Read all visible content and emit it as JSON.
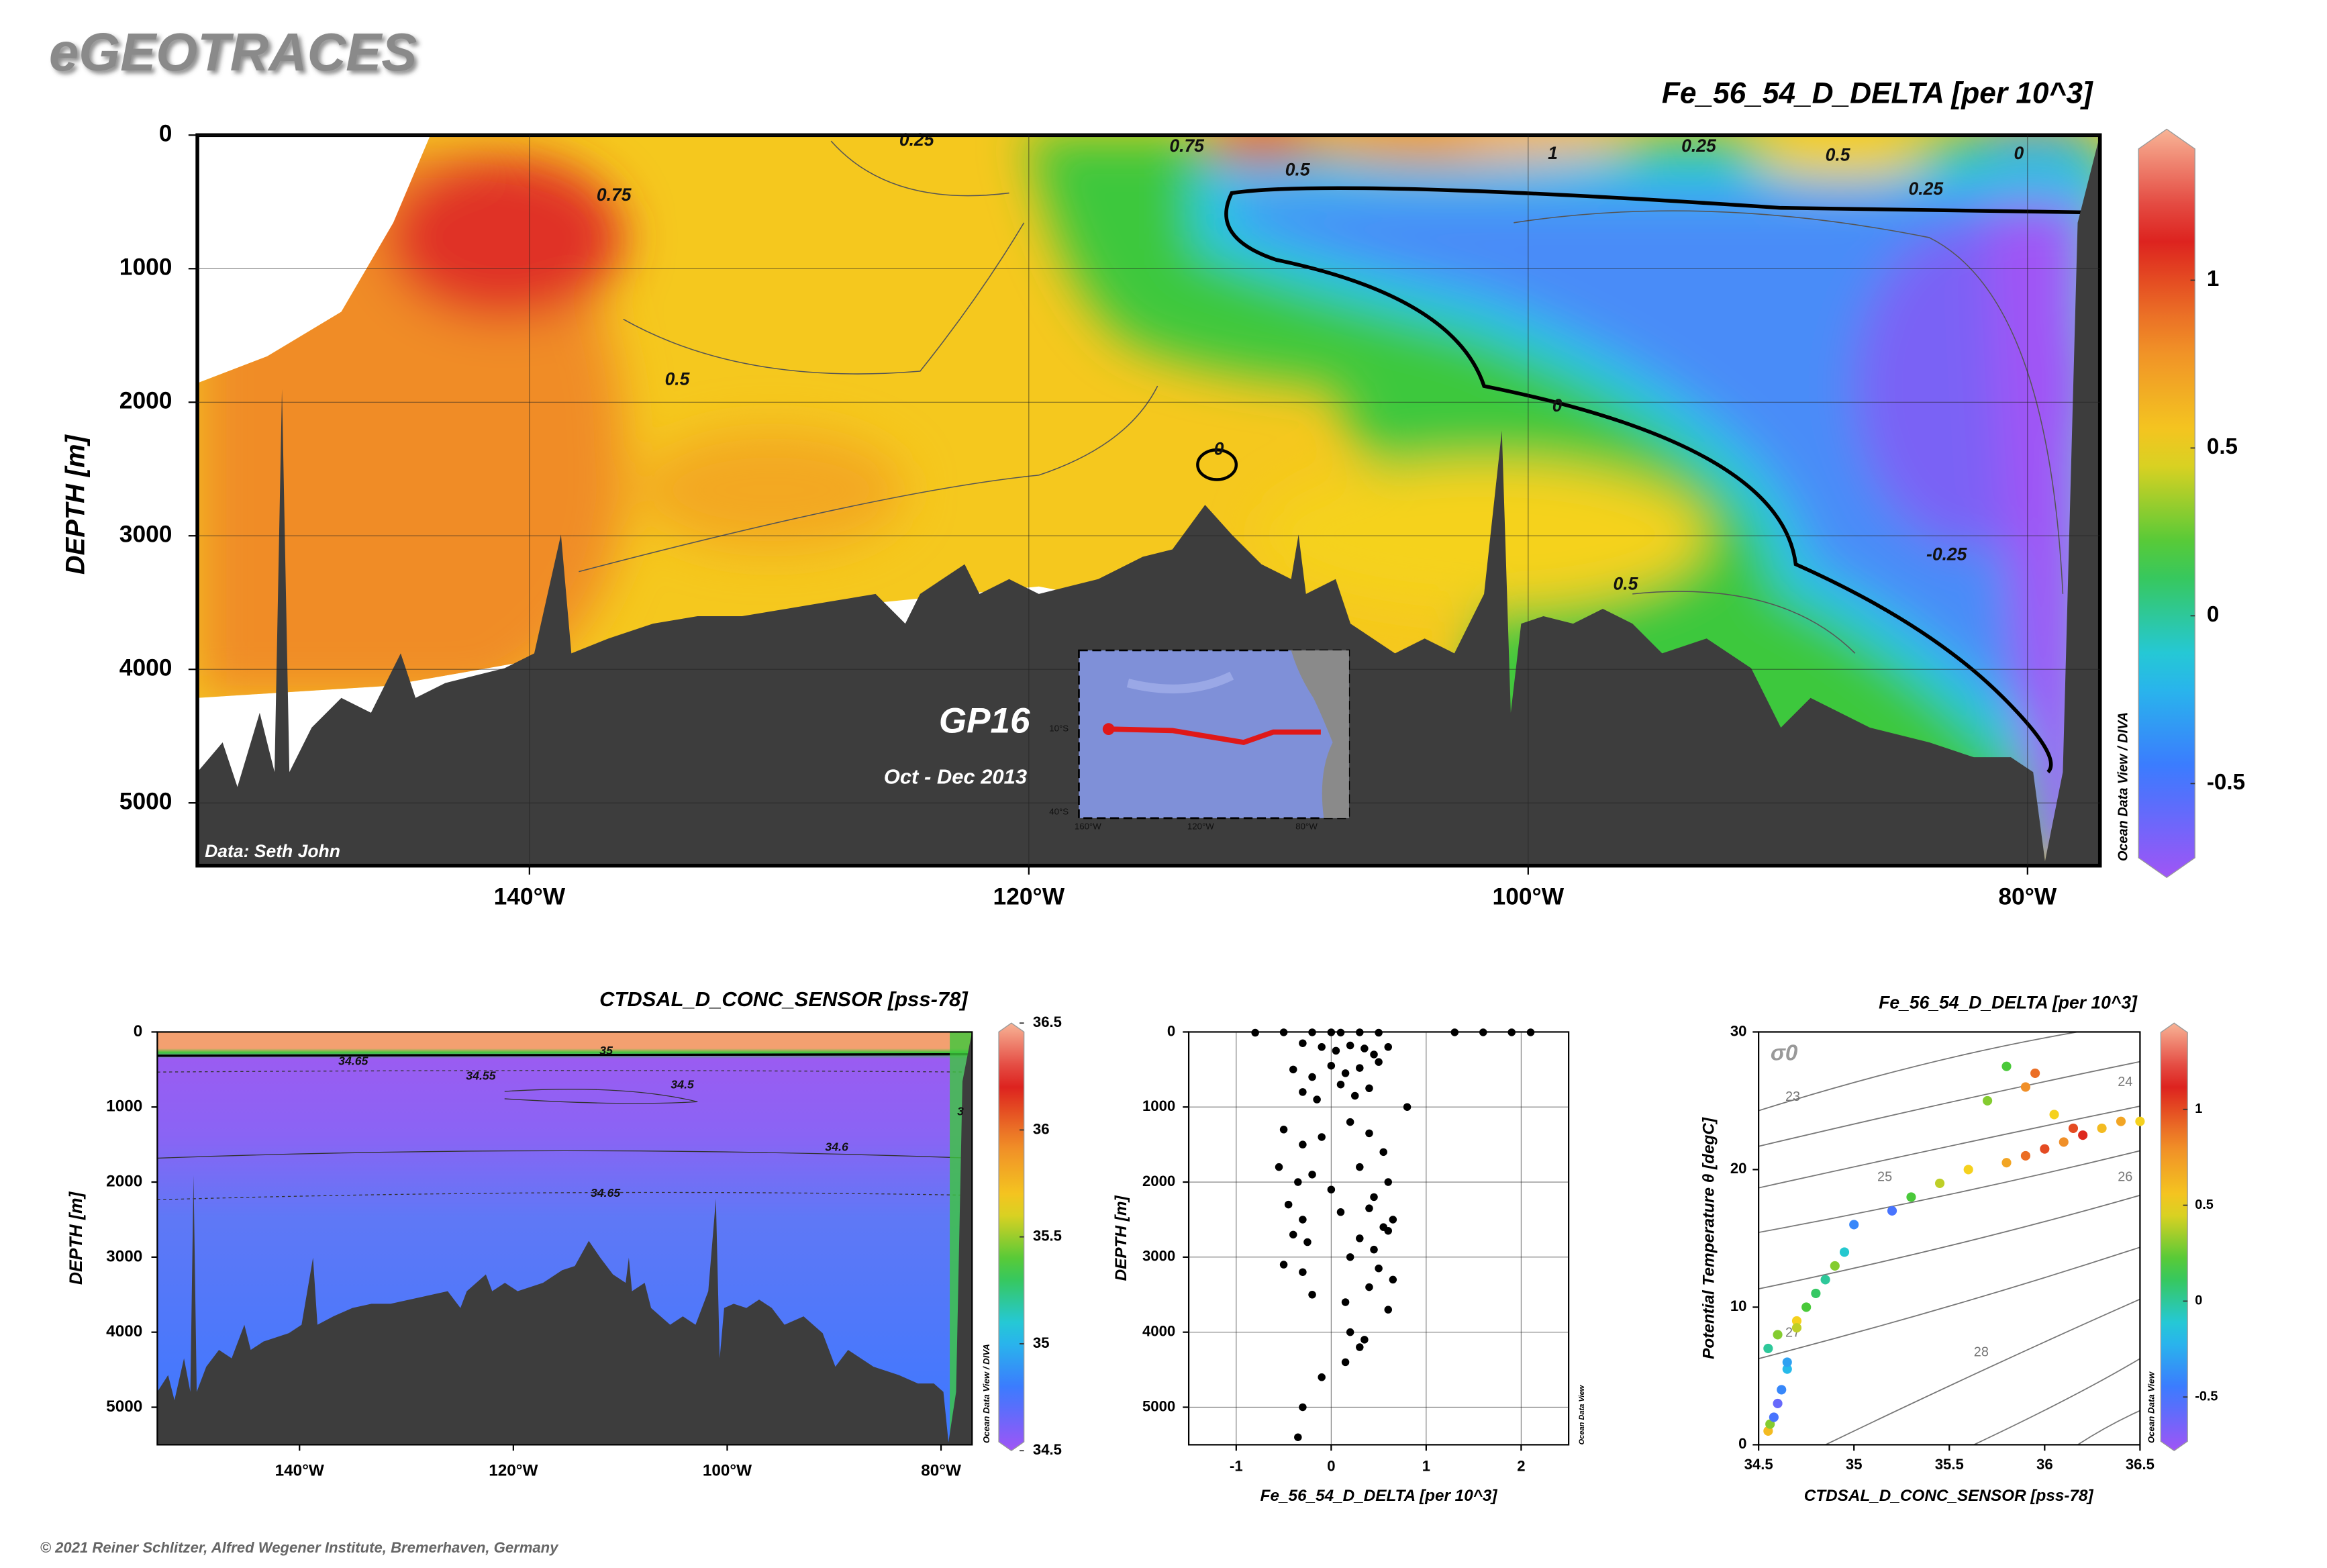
{
  "header": {
    "logo": "eGEOTRACES",
    "footer": "© 2021 Reiner Schlitzer, Alfred Wegener Institute, Bremerhaven, Germany"
  },
  "chart_data": [
    {
      "type": "section",
      "title": "Fe_56_54_D_DELTA [per 10^3]",
      "y_label": "DEPTH [m]",
      "xlim": [
        -153.3,
        -77.1
      ],
      "xticks": [
        {
          "value": -140,
          "label": "140°W"
        },
        {
          "value": -120,
          "label": "120°W"
        },
        {
          "value": -100,
          "label": "100°W"
        },
        {
          "value": -80,
          "label": "80°W"
        }
      ],
      "ylim": [
        5470,
        0
      ],
      "yticks": [
        0,
        1000,
        2000,
        3000,
        4000,
        5000
      ],
      "grid": true,
      "colorbar": {
        "clim": [
          -0.78,
          1.45
        ],
        "ticks": [
          -0.5,
          0,
          0.5,
          1
        ],
        "label": "Ocean Data View / DIVA"
      },
      "annotations": [
        "GP16",
        "Oct - Dec 2013",
        "Data: Seth John"
      ],
      "contour_labels": [
        "0.25",
        "0.75",
        "0.75",
        "0.5",
        "0.5",
        "0.25",
        "0.25",
        "1",
        "0.5",
        "0",
        "0",
        "-0.25",
        "0.5",
        "0"
      ],
      "inset_labels": [
        "10°S",
        "40°S",
        "160°W",
        "120°W",
        "80°W"
      ]
    },
    {
      "type": "section",
      "title": "CTDSAL_D_CONC_SENSOR [pss-78]",
      "y_label": "DEPTH [m]",
      "xlim": [
        -153.3,
        -77.1
      ],
      "xticks": [
        {
          "value": -140,
          "label": "140°W"
        },
        {
          "value": -120,
          "label": "120°W"
        },
        {
          "value": -100,
          "label": "100°W"
        },
        {
          "value": -80,
          "label": "80°W"
        }
      ],
      "ylim": [
        5500,
        0
      ],
      "yticks": [
        0,
        1000,
        2000,
        3000,
        4000,
        5000
      ],
      "grid": false,
      "colorbar": {
        "clim": [
          34.5,
          36.5
        ],
        "ticks": [
          34.5,
          35,
          35.5,
          36,
          36.5
        ],
        "label": "Ocean Data View / DIVA"
      },
      "contour_labels": [
        "34.65",
        "34.55",
        "34.5",
        "34.6",
        "34.65",
        "35",
        "3"
      ]
    },
    {
      "type": "scatter",
      "x_label": "Fe_56_54_D_DELTA [per 10^3]",
      "y_label": "DEPTH [m]",
      "xlim": [
        -1.5,
        2.5
      ],
      "xticks": [
        -1,
        0,
        1,
        2
      ],
      "ylim": [
        5500,
        0
      ],
      "yticks": [
        0,
        1000,
        2000,
        3000,
        4000,
        5000
      ],
      "grid": true,
      "color": "#000000",
      "watermark": "Ocean Data View",
      "x": [
        -0.8,
        -0.5,
        -0.2,
        0,
        0.1,
        0.3,
        0.5,
        1.3,
        1.6,
        1.9,
        2.1,
        -0.3,
        -0.1,
        0.05,
        0.2,
        0.35,
        0.45,
        0.6,
        -0.4,
        -0.2,
        0.0,
        0.15,
        0.3,
        0.5,
        -0.3,
        -0.15,
        0.1,
        0.25,
        0.4,
        0.8,
        -0.5,
        -0.3,
        -0.1,
        0.2,
        0.4,
        0.55,
        -0.55,
        -0.35,
        -0.2,
        0.0,
        0.3,
        0.45,
        0.6,
        -0.45,
        -0.3,
        0.1,
        0.4,
        0.55,
        0.65,
        -0.4,
        -0.25,
        0.3,
        0.45,
        0.6,
        -0.5,
        -0.3,
        0.2,
        0.5,
        0.65,
        -0.2,
        0.15,
        0.4,
        0.6,
        0.2,
        0.35,
        0.15,
        0.3,
        -0.1,
        -0.3,
        -0.35
      ],
      "y": [
        10,
        5,
        5,
        5,
        8,
        5,
        10,
        5,
        5,
        5,
        5,
        150,
        200,
        250,
        180,
        220,
        300,
        200,
        500,
        600,
        450,
        550,
        480,
        400,
        800,
        900,
        700,
        850,
        750,
        1000,
        1300,
        1500,
        1400,
        1200,
        1350,
        1600,
        1800,
        2000,
        1900,
        2100,
        1800,
        2200,
        2000,
        2300,
        2500,
        2400,
        2350,
        2600,
        2500,
        2700,
        2800,
        2750,
        2900,
        2650,
        3100,
        3200,
        3000,
        3150,
        3300,
        3500,
        3600,
        3400,
        3700,
        4000,
        4100,
        4400,
        4200,
        4600,
        5000,
        5400
      ]
    },
    {
      "type": "ts",
      "title": "Fe_56_54_D_DELTA [per 10^3]",
      "x_label": "CTDSAL_D_CONC_SENSOR [pss-78]",
      "y_label": "Potential Temperature θ [degC]",
      "xlim": [
        34.5,
        36.5
      ],
      "xticks": [
        34.5,
        35,
        35.5,
        36,
        36.5
      ],
      "ylim": [
        0,
        30
      ],
      "yticks": [
        0,
        10,
        20,
        30
      ],
      "grid": false,
      "colorbar": {
        "clim": [
          -0.78,
          1.45
        ],
        "ticks": [
          -0.5,
          0,
          0.5,
          1
        ],
        "label": "Ocean Data View"
      },
      "isopycnal_labels": [
        "σ0",
        "23",
        "24",
        "25",
        "26",
        "27",
        "28"
      ],
      "x": [
        34.55,
        34.56,
        34.58,
        34.6,
        34.62,
        34.65,
        34.55,
        34.6,
        34.7,
        34.75,
        34.8,
        34.85,
        34.9,
        34.95,
        34.65,
        34.7,
        35.0,
        35.2,
        35.3,
        35.45,
        35.6,
        35.8,
        35.9,
        36.0,
        36.1,
        36.2,
        36.3,
        36.4,
        36.5,
        35.7,
        35.9,
        36.05,
        36.15,
        35.95,
        35.8
      ],
      "y": [
        1.0,
        1.5,
        2.0,
        3.0,
        4.0,
        5.5,
        7,
        8,
        9,
        10,
        11,
        12,
        13,
        14,
        6,
        8.5,
        16,
        17,
        18,
        19,
        20,
        20.5,
        21,
        21.5,
        22,
        22.5,
        23,
        23.5,
        23.5,
        25,
        26,
        24,
        23,
        27,
        27.5
      ],
      "c": [
        0.6,
        0.3,
        -0.5,
        -0.6,
        -0.4,
        -0.2,
        0,
        0.3,
        0.5,
        0.2,
        0.1,
        0,
        0.3,
        -0.1,
        -0.3,
        0.4,
        -0.4,
        -0.5,
        0.2,
        0.4,
        0.5,
        0.7,
        0.9,
        1.0,
        0.8,
        1.1,
        0.6,
        0.7,
        0.5,
        0.3,
        0.8,
        0.5,
        1.0,
        0.9,
        0.2
      ]
    }
  ]
}
